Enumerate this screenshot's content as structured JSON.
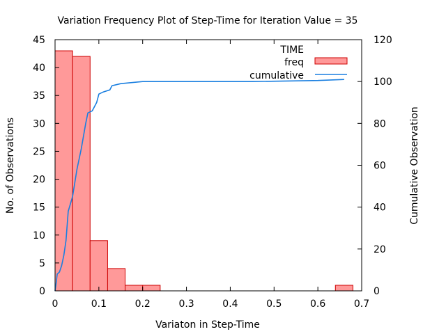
{
  "chart_data": {
    "type": "bar",
    "title": "Variation Frequency Plot of Step-Time for Iteration Value = 35",
    "xlabel": "Variaton in Step-Time",
    "ylabel": "No. of Observations",
    "y2label": "Cumulative Observation",
    "xlim": [
      0,
      0.7
    ],
    "ylim": [
      0,
      45
    ],
    "y2lim": [
      0,
      120
    ],
    "x_ticks": [
      "0",
      "0.1",
      "0.2",
      "0.3",
      "0.4",
      "0.5",
      "0.6",
      "0.7"
    ],
    "y_ticks": [
      "0",
      "5",
      "10",
      "15",
      "20",
      "25",
      "30",
      "35",
      "40",
      "45"
    ],
    "y2_ticks": [
      "0",
      "20",
      "40",
      "60",
      "80",
      "100",
      "120"
    ],
    "legend": {
      "title": "TIME",
      "placement": "top-right",
      "items": [
        "freq",
        "cumulative"
      ]
    },
    "colors": {
      "freq_fill": "#ff9999",
      "freq_edge": "#cc0000",
      "cumulative": "#1a7fe0"
    },
    "series": [
      {
        "name": "freq",
        "type": "bar",
        "bins": [
          {
            "x0": 0.0,
            "x1": 0.04,
            "value": 43
          },
          {
            "x0": 0.04,
            "x1": 0.08,
            "value": 42
          },
          {
            "x0": 0.08,
            "x1": 0.12,
            "value": 9
          },
          {
            "x0": 0.12,
            "x1": 0.16,
            "value": 4
          },
          {
            "x0": 0.16,
            "x1": 0.2,
            "value": 1
          },
          {
            "x0": 0.2,
            "x1": 0.24,
            "value": 1
          },
          {
            "x0": 0.64,
            "x1": 0.68,
            "value": 1
          }
        ]
      },
      {
        "name": "cumulative",
        "type": "line",
        "axis": "y2",
        "points": [
          [
            0.0,
            0
          ],
          [
            0.002,
            3
          ],
          [
            0.005,
            8
          ],
          [
            0.01,
            9
          ],
          [
            0.015,
            12
          ],
          [
            0.02,
            17
          ],
          [
            0.025,
            24
          ],
          [
            0.03,
            38
          ],
          [
            0.04,
            45
          ],
          [
            0.05,
            58
          ],
          [
            0.06,
            68
          ],
          [
            0.07,
            80
          ],
          [
            0.075,
            85
          ],
          [
            0.085,
            86
          ],
          [
            0.095,
            90
          ],
          [
            0.1,
            94
          ],
          [
            0.11,
            95
          ],
          [
            0.125,
            96
          ],
          [
            0.13,
            98
          ],
          [
            0.15,
            99
          ],
          [
            0.2,
            100
          ],
          [
            0.3,
            100
          ],
          [
            0.45,
            100
          ],
          [
            0.6,
            100.5
          ],
          [
            0.66,
            101
          ]
        ]
      }
    ]
  }
}
